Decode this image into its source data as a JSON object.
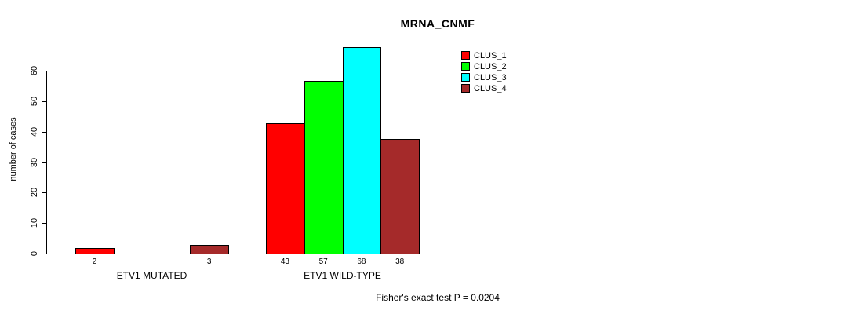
{
  "chart_data": {
    "type": "bar",
    "title": "MRNA_CNMF",
    "ylabel": "number of cases",
    "xlabel": "",
    "ylim": [
      0,
      60
    ],
    "yticks": [
      0,
      10,
      20,
      30,
      40,
      50,
      60
    ],
    "categories": [
      "ETV1 MUTATED",
      "ETV1 WILD-TYPE"
    ],
    "series": [
      {
        "name": "CLUS_1",
        "color": "#ff0000",
        "values": [
          2,
          43
        ]
      },
      {
        "name": "CLUS_2",
        "color": "#00ff00",
        "values": [
          0,
          57
        ]
      },
      {
        "name": "CLUS_3",
        "color": "#00ffff",
        "values": [
          0,
          68
        ]
      },
      {
        "name": "CLUS_4",
        "color": "#a52a2a",
        "values": [
          3,
          38
        ]
      }
    ],
    "bar_value_labels": {
      "ETV1 MUTATED": [
        2,
        null,
        null,
        3
      ],
      "ETV1 WILD-TYPE": [
        43,
        57,
        68,
        38
      ]
    },
    "annotation": "Fisher's exact test P = 0.0204",
    "legend_position": "top-right",
    "grid": false,
    "background": "#ffffff",
    "axis_color": "#000000"
  }
}
